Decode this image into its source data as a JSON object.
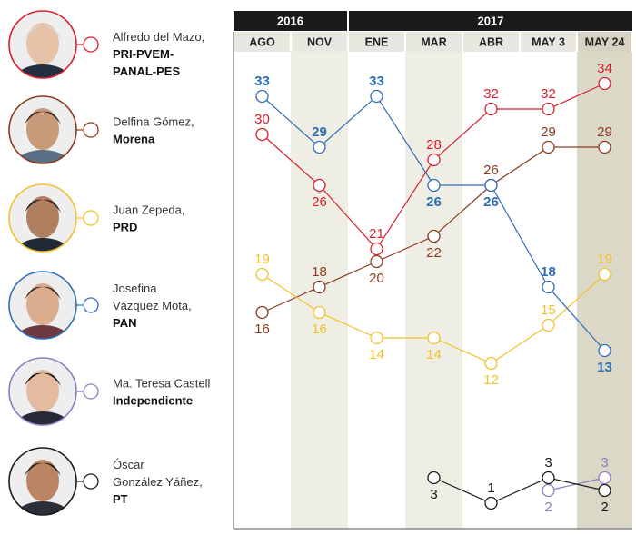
{
  "chart_data": {
    "type": "line",
    "years": [
      {
        "label": "2016",
        "span": [
          0,
          1
        ]
      },
      {
        "label": "2017",
        "span": [
          2,
          6
        ]
      }
    ],
    "categories": [
      "AGO",
      "NOV",
      "ENE",
      "MAR",
      "ABR",
      "MAY 3",
      "MAY 24"
    ],
    "shaded_columns": [
      1,
      3,
      6
    ],
    "ylim": [
      0,
      36
    ],
    "series": [
      {
        "key": "delmazo",
        "candidate": "Alfredo del Mazo,",
        "party": "PRI-PVEM-\nPANAL-PES",
        "color": "#d7202f",
        "label_bold": false,
        "values": [
          30,
          26,
          21,
          28,
          32,
          32,
          34
        ],
        "label_pos": [
          "above",
          "below",
          "above",
          "above",
          "above",
          "above",
          "above"
        ]
      },
      {
        "key": "gomez",
        "candidate": "Delfina Gómez,",
        "party": "Morena",
        "color": "#8b3a1e",
        "label_bold": false,
        "values": [
          16,
          18,
          20,
          22,
          26,
          29,
          29
        ],
        "label_pos": [
          "below",
          "above",
          "below",
          "below",
          "above",
          "above",
          "above"
        ]
      },
      {
        "key": "zepeda",
        "candidate": "Juan Zepeda,",
        "party": "PRD",
        "color": "#f2c12e",
        "label_bold": false,
        "values": [
          19,
          16,
          14,
          14,
          12,
          15,
          19
        ],
        "label_pos": [
          "above",
          "below",
          "below",
          "below",
          "below",
          "above",
          "above"
        ]
      },
      {
        "key": "vazquez",
        "candidate": "Josefina\nVázquez Mota,",
        "party": "PAN",
        "color": "#2f6db5",
        "label_bold": true,
        "values": [
          33,
          29,
          33,
          26,
          26,
          18,
          13
        ],
        "label_pos": [
          "above",
          "above",
          "above",
          "below",
          "below",
          "above",
          "below"
        ]
      },
      {
        "key": "castell",
        "candidate": "Ma. Teresa Castell",
        "party": "Independiente",
        "color": "#8e7cc3",
        "label_bold": false,
        "values": [
          null,
          null,
          null,
          null,
          null,
          2,
          3
        ],
        "label_pos": [
          null,
          null,
          null,
          null,
          null,
          "below",
          "above"
        ]
      },
      {
        "key": "gonzalez",
        "candidate": "Óscar\nGonzález Yáñez,",
        "party": "PT",
        "color": "#1a1a1a",
        "label_bold": false,
        "values": [
          null,
          null,
          null,
          3,
          1,
          3,
          2
        ],
        "label_pos": [
          null,
          null,
          null,
          "below",
          "above",
          "above",
          "below"
        ]
      }
    ]
  }
}
